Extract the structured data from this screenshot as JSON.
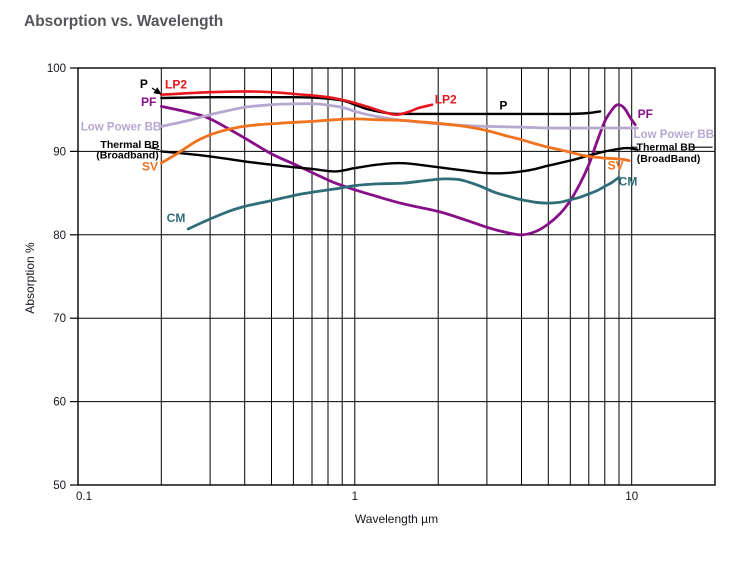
{
  "page": {
    "title": "Absorption vs. Wavelength"
  },
  "chart_data": {
    "type": "line",
    "title": "Absorption vs. Wavelength",
    "xlabel": "Wavelength µm",
    "ylabel": "Absorption %",
    "x_scale": "log",
    "xlim": [
      0.1,
      20
    ],
    "ylim": [
      50,
      100
    ],
    "x_ticks": [
      {
        "value": 0.1,
        "label": "0.1"
      },
      {
        "value": 1,
        "label": "1"
      },
      {
        "value": 10,
        "label": "10"
      }
    ],
    "y_ticks": [
      50,
      60,
      70,
      80,
      90,
      100
    ],
    "grid": {
      "x_minor_log": true,
      "y_step": 10,
      "legend": "inline-annotations"
    },
    "colors": {
      "grid": "#000000",
      "border": "#000000",
      "axis_text": "#15151d",
      "title_text": "#55565a"
    },
    "series": [
      {
        "id": "P",
        "name": "P",
        "color": "#000000",
        "width": 2.4,
        "points": [
          [
            0.2,
            96.4
          ],
          [
            0.3,
            96.5
          ],
          [
            0.45,
            96.5
          ],
          [
            0.6,
            96.5
          ],
          [
            0.75,
            96.4
          ],
          [
            0.9,
            96.1
          ],
          [
            1.0,
            95.6
          ],
          [
            1.1,
            95.1
          ],
          [
            1.25,
            94.7
          ],
          [
            1.4,
            94.5
          ],
          [
            1.7,
            94.5
          ],
          [
            2,
            94.5
          ],
          [
            3,
            94.5
          ],
          [
            4,
            94.5
          ],
          [
            5,
            94.5
          ],
          [
            6,
            94.5
          ],
          [
            7,
            94.6
          ],
          [
            7.7,
            94.8
          ]
        ]
      },
      {
        "id": "LP2",
        "name": "LP2",
        "color": "#e8151c",
        "width": 2.6,
        "points": [
          [
            0.2,
            96.8
          ],
          [
            0.3,
            97.1
          ],
          [
            0.4,
            97.2
          ],
          [
            0.5,
            97.1
          ],
          [
            0.65,
            96.8
          ],
          [
            0.8,
            96.5
          ],
          [
            0.95,
            96.0
          ],
          [
            1.1,
            95.4
          ],
          [
            1.25,
            94.8
          ],
          [
            1.4,
            94.4
          ],
          [
            1.55,
            94.7
          ],
          [
            1.7,
            95.2
          ],
          [
            1.9,
            95.6
          ]
        ]
      },
      {
        "id": "PF",
        "name": "PF",
        "color": "#870f87",
        "width": 2.8,
        "points": [
          [
            0.2,
            95.4
          ],
          [
            0.25,
            94.7
          ],
          [
            0.3,
            93.9
          ],
          [
            0.4,
            91.6
          ],
          [
            0.5,
            89.7
          ],
          [
            0.62,
            88.3
          ],
          [
            0.75,
            87.0
          ],
          [
            0.85,
            86.2
          ],
          [
            1.0,
            85.4
          ],
          [
            1.2,
            84.6
          ],
          [
            1.5,
            83.7
          ],
          [
            2,
            82.8
          ],
          [
            2.5,
            81.8
          ],
          [
            3,
            80.9
          ],
          [
            3.5,
            80.3
          ],
          [
            4,
            80.0
          ],
          [
            4.5,
            80.4
          ],
          [
            5,
            81.3
          ],
          [
            5.5,
            82.5
          ],
          [
            6,
            84.1
          ],
          [
            6.5,
            86.1
          ],
          [
            7,
            88.4
          ],
          [
            7.5,
            91.2
          ],
          [
            8,
            93.6
          ],
          [
            8.5,
            95.0
          ],
          [
            8.9,
            95.6
          ],
          [
            9.4,
            95.2
          ],
          [
            9.9,
            94.0
          ],
          [
            10.3,
            93.2
          ]
        ]
      },
      {
        "id": "LowPowerBB",
        "name": "Low Power BB",
        "color": "#b7a8d0",
        "width": 2.8,
        "points": [
          [
            0.2,
            93.0
          ],
          [
            0.25,
            93.7
          ],
          [
            0.3,
            94.4
          ],
          [
            0.35,
            94.9
          ],
          [
            0.4,
            95.3
          ],
          [
            0.5,
            95.6
          ],
          [
            0.6,
            95.7
          ],
          [
            0.72,
            95.7
          ],
          [
            0.82,
            95.5
          ],
          [
            0.92,
            95.2
          ],
          [
            1.0,
            94.8
          ],
          [
            1.15,
            94.3
          ],
          [
            1.35,
            93.9
          ],
          [
            1.6,
            93.6
          ],
          [
            2,
            93.3
          ],
          [
            2.5,
            93.1
          ],
          [
            3,
            93.0
          ],
          [
            4,
            92.9
          ],
          [
            5,
            92.8
          ],
          [
            7,
            92.8
          ],
          [
            9,
            92.8
          ],
          [
            10.5,
            92.8
          ]
        ]
      },
      {
        "id": "ThermalBB",
        "name": "Thermal BB (Broadband)",
        "color": "#000000",
        "width": 2.4,
        "points": [
          [
            0.2,
            90.0
          ],
          [
            0.25,
            89.7
          ],
          [
            0.3,
            89.4
          ],
          [
            0.4,
            88.8
          ],
          [
            0.5,
            88.4
          ],
          [
            0.6,
            88.1
          ],
          [
            0.7,
            87.9
          ],
          [
            0.85,
            87.6
          ],
          [
            1.0,
            88.0
          ],
          [
            1.2,
            88.4
          ],
          [
            1.45,
            88.6
          ],
          [
            1.7,
            88.4
          ],
          [
            2,
            88.1
          ],
          [
            2.5,
            87.7
          ],
          [
            3,
            87.4
          ],
          [
            3.5,
            87.4
          ],
          [
            4,
            87.6
          ],
          [
            4.5,
            87.9
          ],
          [
            5,
            88.3
          ],
          [
            6,
            88.9
          ],
          [
            7,
            89.5
          ],
          [
            8,
            90.0
          ],
          [
            9,
            90.3
          ],
          [
            9.7,
            90.4
          ],
          [
            10.5,
            90.2
          ]
        ]
      },
      {
        "id": "SV",
        "name": "SV",
        "color": "#f1721f",
        "width": 2.8,
        "points": [
          [
            0.2,
            88.6
          ],
          [
            0.23,
            89.8
          ],
          [
            0.27,
            91.3
          ],
          [
            0.32,
            92.3
          ],
          [
            0.38,
            92.9
          ],
          [
            0.45,
            93.2
          ],
          [
            0.55,
            93.4
          ],
          [
            0.7,
            93.6
          ],
          [
            0.85,
            93.8
          ],
          [
            1.0,
            93.9
          ],
          [
            1.2,
            93.8
          ],
          [
            1.5,
            93.7
          ],
          [
            1.8,
            93.5
          ],
          [
            2.1,
            93.3
          ],
          [
            2.5,
            93.0
          ],
          [
            3,
            92.5
          ],
          [
            3.5,
            91.9
          ],
          [
            4,
            91.4
          ],
          [
            4.5,
            90.9
          ],
          [
            5,
            90.5
          ],
          [
            5.5,
            90.2
          ],
          [
            6,
            89.9
          ],
          [
            6.5,
            89.6
          ],
          [
            7,
            89.4
          ],
          [
            8,
            89.2
          ],
          [
            9,
            89.1
          ],
          [
            9.8,
            88.9
          ]
        ]
      },
      {
        "id": "CM",
        "name": "CM",
        "color": "#2f6d79",
        "width": 2.8,
        "points": [
          [
            0.25,
            80.7
          ],
          [
            0.3,
            81.9
          ],
          [
            0.35,
            82.8
          ],
          [
            0.4,
            83.4
          ],
          [
            0.5,
            84.1
          ],
          [
            0.6,
            84.7
          ],
          [
            0.7,
            85.1
          ],
          [
            0.85,
            85.5
          ],
          [
            1.0,
            85.9
          ],
          [
            1.2,
            86.1
          ],
          [
            1.5,
            86.2
          ],
          [
            1.8,
            86.5
          ],
          [
            2.1,
            86.7
          ],
          [
            2.4,
            86.6
          ],
          [
            2.8,
            85.9
          ],
          [
            3.2,
            85.1
          ],
          [
            3.6,
            84.6
          ],
          [
            4,
            84.2
          ],
          [
            4.5,
            83.9
          ],
          [
            5,
            83.8
          ],
          [
            5.5,
            83.9
          ],
          [
            6,
            84.2
          ],
          [
            6.5,
            84.5
          ],
          [
            7,
            84.9
          ],
          [
            7.5,
            85.3
          ],
          [
            8,
            85.8
          ],
          [
            8.5,
            86.3
          ],
          [
            9,
            86.9
          ]
        ]
      }
    ],
    "annotations": [
      {
        "id": "left-P",
        "text": "P",
        "color": "#000000",
        "x": 0.173,
        "y": 98.1,
        "size": 12
      },
      {
        "id": "left-LP2",
        "text": "LP2",
        "color": "#e8151c",
        "x": 0.226,
        "y": 98.0,
        "size": 12
      },
      {
        "id": "left-PF",
        "text": "PF",
        "color": "#870f87",
        "x": 0.18,
        "y": 95.9,
        "size": 12
      },
      {
        "id": "left-LowPowerBB",
        "text": "Low Power BB",
        "color": "#b7a8d0",
        "x": 0.143,
        "y": 93.0,
        "size": 11.5
      },
      {
        "id": "left-ThermalBB",
        "text": "Thermal BB",
        "color": "#000000",
        "x": 0.154,
        "y": 90.9,
        "size": 10.5
      },
      {
        "id": "left-Broadband",
        "text": "(Broadband)",
        "color": "#000000",
        "x": 0.151,
        "y": 89.6,
        "size": 10.5
      },
      {
        "id": "left-SV",
        "text": "SV",
        "color": "#f1721f",
        "x": 0.182,
        "y": 88.2,
        "size": 12
      },
      {
        "id": "left-CM",
        "text": "CM",
        "color": "#2f6d79",
        "x": 0.226,
        "y": 82.0,
        "size": 12
      },
      {
        "id": "mid-LP2",
        "text": "LP2",
        "color": "#e8151c",
        "x": 2.13,
        "y": 96.2,
        "size": 12
      },
      {
        "id": "mid-P",
        "text": "P",
        "color": "#000000",
        "x": 3.44,
        "y": 95.5,
        "size": 12
      },
      {
        "id": "right-PF",
        "text": "PF",
        "color": "#870f87",
        "x": 11.2,
        "y": 94.5,
        "size": 12
      },
      {
        "id": "right-LowPowerBB",
        "text": "Low Power BB",
        "color": "#b7a8d0",
        "x": 14.2,
        "y": 92.1,
        "size": 11.5
      },
      {
        "id": "right-ThermalBB",
        "text": "Thermal BB",
        "color": "#000000",
        "x": 13.3,
        "y": 90.6,
        "size": 10.5
      },
      {
        "id": "right-BroadBand",
        "text": "(BroadBand)",
        "color": "#000000",
        "x": 13.6,
        "y": 89.2,
        "size": 10.5
      },
      {
        "id": "right-SV",
        "text": "SV",
        "color": "#f1721f",
        "x": 8.75,
        "y": 88.3,
        "size": 12
      },
      {
        "id": "right-CM",
        "text": "CM",
        "color": "#2f6d79",
        "x": 9.7,
        "y": 86.4,
        "size": 12
      }
    ],
    "leader_lines": [
      {
        "id": "p-label-arrow",
        "x1": 0.185,
        "y1": 97.6,
        "x2": 0.199,
        "y2": 96.9,
        "color": "#000000",
        "width": 1.2,
        "arrow": true
      },
      {
        "id": "thermal-left-dash",
        "x1": 0.178,
        "y1": 90.5,
        "x2": 0.197,
        "y2": 90.2,
        "color": "#000000",
        "width": 1.1
      },
      {
        "id": "thermal-right-dash-in",
        "x1": 9.9,
        "y1": 90.5,
        "x2": 10.5,
        "y2": 90.5,
        "color": "#000000",
        "width": 1.1
      },
      {
        "id": "thermal-right-dash-out",
        "x1": 16.6,
        "y1": 90.5,
        "x2": 19.6,
        "y2": 90.5,
        "color": "#000000",
        "width": 1.1
      }
    ]
  }
}
